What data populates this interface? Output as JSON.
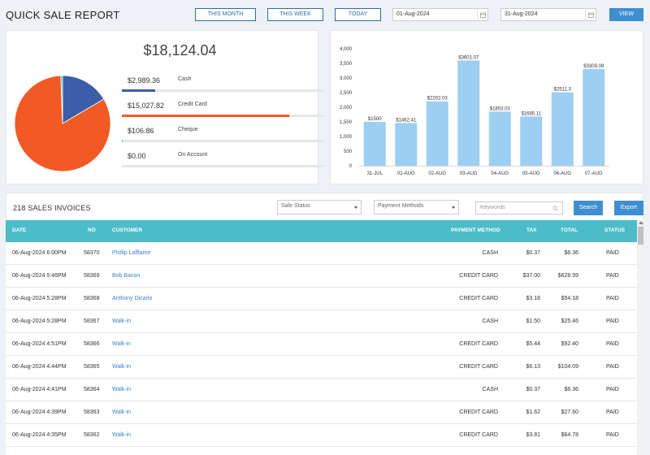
{
  "header": {
    "title": "QUICK SALE REPORT",
    "periods": [
      "THIS MONTH",
      "THIS WEEK",
      "TODAY"
    ],
    "date_from": "01-Aug-2024",
    "date_to": "31-Aug-2024",
    "view_label": "VIEW",
    "icons": [
      "calendar-icon"
    ]
  },
  "summary": {
    "total": "$18,124.04",
    "payments": [
      {
        "amount": "$2,989.36",
        "label": "Cash",
        "fraction": 0.165,
        "color": "#3c5ea8"
      },
      {
        "amount": "$15,027.82",
        "label": "Credit Card",
        "fraction": 0.829,
        "color": "#f15a24"
      },
      {
        "amount": "$106.86",
        "label": "Cheque",
        "fraction": 0.006,
        "color": "#3bbfb2"
      },
      {
        "amount": "$0.00",
        "label": "On Account",
        "fraction": 0.0,
        "color": "#9aa4b0"
      }
    ]
  },
  "chart_data": [
    {
      "type": "pie",
      "categories": [
        "Cash",
        "Credit Card",
        "Cheque",
        "On Account"
      ],
      "values": [
        2989.36,
        15027.82,
        106.86,
        0.0
      ],
      "colors": [
        "#3c5ea8",
        "#f15a24",
        "#3bbfb2",
        "#9aa4b0"
      ]
    },
    {
      "type": "bar",
      "categories": [
        "31-JUL",
        "01-AUG",
        "02-AUG",
        "03-AUG",
        "04-AUG",
        "05-AUG",
        "06-AUG",
        "07-AUG"
      ],
      "values": [
        1500,
        1462.41,
        2202.03,
        3601.07,
        1853.03,
        1685.11,
        2511.3,
        3309.09
      ],
      "value_labels": [
        "$1500",
        "$1462.41",
        "$2202.03",
        "$3601.07",
        "$1853.03",
        "$1685.11",
        "$2511.3",
        "$3309.09"
      ],
      "ylim": [
        0,
        4000
      ],
      "yticks": [
        "0",
        "500",
        "1,000",
        "1,500",
        "2,000",
        "2,500",
        "3,000",
        "3,500",
        "4,000"
      ],
      "bar_color": "#9dcff3",
      "grid": false,
      "title": "",
      "xlabel": "",
      "ylabel": ""
    }
  ],
  "invoices": {
    "title": "218 SALES INVOICES",
    "status_placeholder": "Sale Status",
    "methods_placeholder": "Payment Methods",
    "keywords_placeholder": "Keywords",
    "search_label": "Search",
    "export_label": "Export",
    "columns": [
      "DATE",
      "NO",
      "CUSTOMER",
      "PAYMENT METHOD",
      "TAX",
      "TOTAL",
      "STATUS"
    ],
    "rows": [
      [
        "06-Aug-2024 6:00PM",
        "58370",
        "Phillip Lafflame",
        "CASH",
        "$0.37",
        "$6.36",
        "PAID"
      ],
      [
        "06-Aug-2024 5:46PM",
        "58369",
        "Bob Bacon",
        "CREDIT CARD",
        "$37.00",
        "$628.99",
        "PAID"
      ],
      [
        "06-Aug-2024 5:28PM",
        "58368",
        "Anthony Dicarlo",
        "CREDIT CARD",
        "$3.18",
        "$54.18",
        "PAID"
      ],
      [
        "06-Aug-2024 5:28PM",
        "58367",
        "Walk-in",
        "CASH",
        "$1.50",
        "$25.46",
        "PAID"
      ],
      [
        "06-Aug-2024 4:51PM",
        "58366",
        "Walk-in",
        "CREDIT CARD",
        "$5.44",
        "$92.40",
        "PAID"
      ],
      [
        "06-Aug-2024 4:44PM",
        "58365",
        "Walk-in",
        "CREDIT CARD",
        "$6.13",
        "$104.09",
        "PAID"
      ],
      [
        "06-Aug-2024 4:41PM",
        "58364",
        "Walk-in",
        "CASH",
        "$0.37",
        "$6.36",
        "PAID"
      ],
      [
        "06-Aug-2024 4:39PM",
        "58363",
        "Walk-in",
        "CREDIT CARD",
        "$1.62",
        "$27.60",
        "PAID"
      ],
      [
        "06-Aug-2024 4:35PM",
        "58362",
        "Walk-in",
        "CREDIT CARD",
        "$3.81",
        "$64.78",
        "PAID"
      ]
    ]
  }
}
